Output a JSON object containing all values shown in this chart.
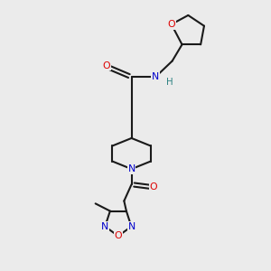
{
  "bg": "#ebebeb",
  "bc": "#1a1a1a",
  "Oc": "#dd0000",
  "Nc": "#0000cc",
  "Hc": "#2a8080",
  "lw": 1.5,
  "fs": 7.8,
  "dpi": 100,
  "figsize": [
    3.0,
    3.0
  ],
  "xlim": [
    0,
    10
  ],
  "ylim": [
    0,
    10
  ]
}
